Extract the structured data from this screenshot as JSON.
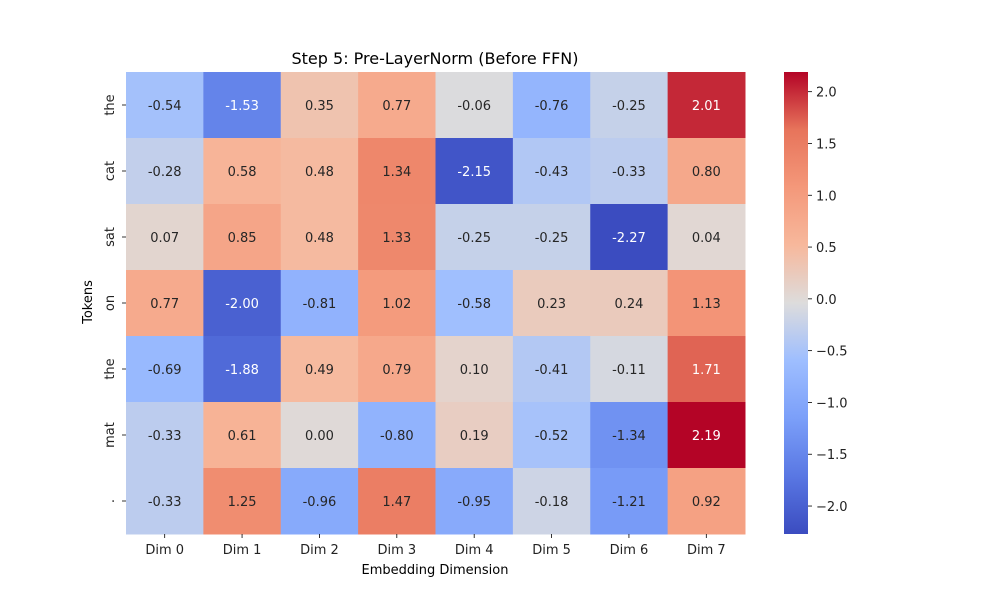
{
  "chart_data": {
    "type": "heatmap",
    "title": "Step 5: Pre-LayerNorm (Before FFN)",
    "xlabel": "Embedding Dimension",
    "ylabel": "Tokens",
    "x_categories": [
      "Dim 0",
      "Dim 1",
      "Dim 2",
      "Dim 3",
      "Dim 4",
      "Dim 5",
      "Dim 6",
      "Dim 7"
    ],
    "y_categories": [
      "the",
      "cat",
      "sat",
      "on",
      "the",
      "mat",
      "."
    ],
    "values": [
      [
        -0.54,
        -1.53,
        0.35,
        0.77,
        -0.06,
        -0.76,
        -0.25,
        2.01
      ],
      [
        -0.28,
        0.58,
        0.48,
        1.34,
        -2.15,
        -0.43,
        -0.33,
        0.8
      ],
      [
        0.07,
        0.85,
        0.48,
        1.33,
        -0.25,
        -0.25,
        -2.27,
        0.04
      ],
      [
        0.77,
        -2.0,
        -0.81,
        1.02,
        -0.58,
        0.23,
        0.24,
        1.13
      ],
      [
        -0.69,
        -1.88,
        0.49,
        0.79,
        0.1,
        -0.41,
        -0.11,
        1.71
      ],
      [
        -0.33,
        0.61,
        0.0,
        -0.8,
        0.19,
        -0.52,
        -1.34,
        2.19
      ],
      [
        -0.33,
        1.25,
        -0.96,
        1.47,
        -0.95,
        -0.18,
        -1.21,
        0.92
      ]
    ],
    "value_labels": [
      [
        "-0.54",
        "-1.53",
        "0.35",
        "0.77",
        "-0.06",
        "-0.76",
        "-0.25",
        "2.01"
      ],
      [
        "-0.28",
        "0.58",
        "0.48",
        "1.34",
        "-2.15",
        "-0.43",
        "-0.33",
        "0.80"
      ],
      [
        "0.07",
        "0.85",
        "0.48",
        "1.33",
        "-0.25",
        "-0.25",
        "-2.27",
        "0.04"
      ],
      [
        "0.77",
        "-2.00",
        "-0.81",
        "1.02",
        "-0.58",
        "0.23",
        "0.24",
        "1.13"
      ],
      [
        "-0.69",
        "-1.88",
        "0.49",
        "0.79",
        "0.10",
        "-0.41",
        "-0.11",
        "1.71"
      ],
      [
        "-0.33",
        "0.61",
        "0.00",
        "-0.80",
        "0.19",
        "-0.52",
        "-1.34",
        "2.19"
      ],
      [
        "-0.33",
        "1.25",
        "-0.96",
        "1.47",
        "-0.95",
        "-0.18",
        "-1.21",
        "0.92"
      ]
    ],
    "colormap": "coolwarm",
    "color_range": [
      -2.27,
      2.19
    ],
    "colorbar_ticks": [
      2.0,
      1.5,
      1.0,
      0.5,
      0.0,
      -0.5,
      -1.0,
      -1.5,
      -2.0
    ],
    "colorbar_tick_labels": [
      "2.0",
      "1.5",
      "1.0",
      "0.5",
      "0.0",
      "−0.5",
      "−1.0",
      "−1.5",
      "−2.0"
    ],
    "grid": false,
    "legend": "colorbar-right"
  }
}
